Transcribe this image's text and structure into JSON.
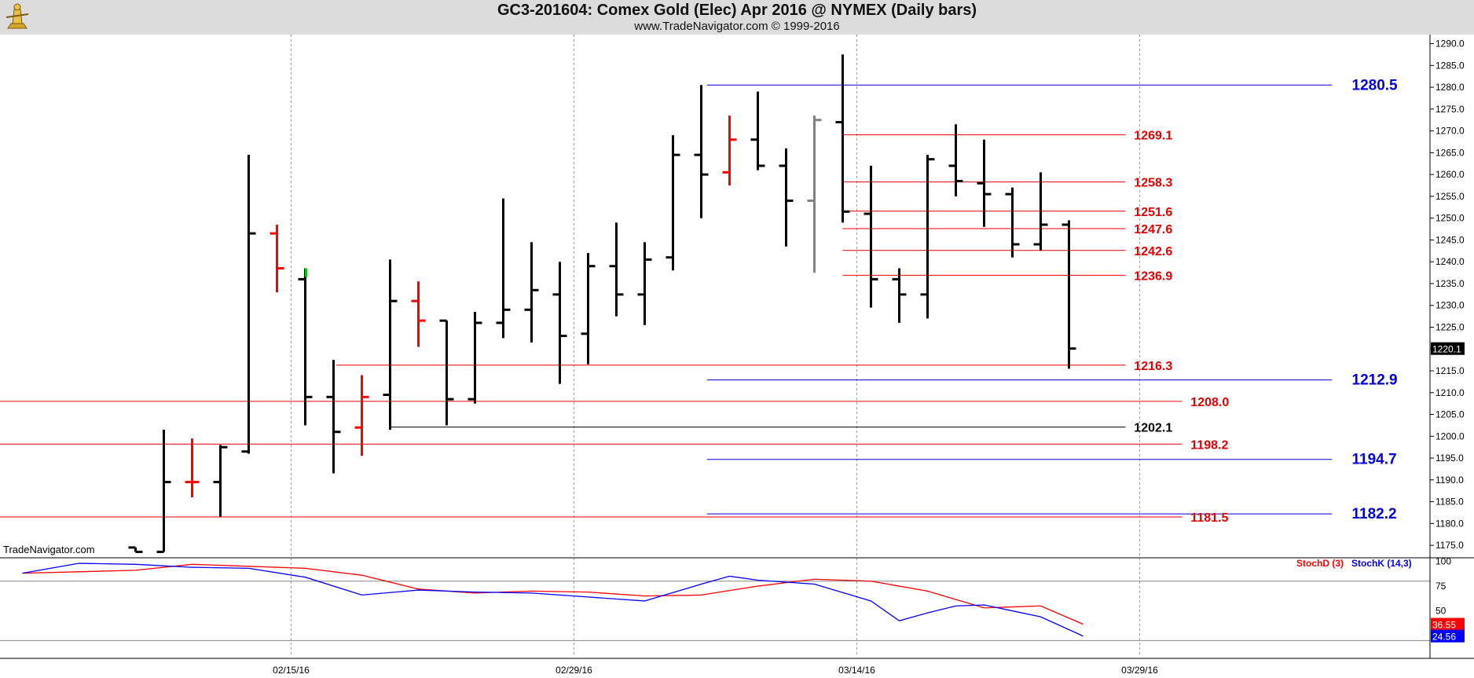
{
  "header": {
    "title": "GC3-201604:  Comex Gold (Elec) Apr 2016 @ NYMEX  (Daily bars)",
    "subtitle": "www.TradeNavigator.com © 1999-2016",
    "watermark": "TradeNavigator.com"
  },
  "colors": {
    "up_bar": "#000000",
    "down_bar": "#ff0000",
    "neutral_bar": "#808080",
    "green_tick": "#00cc00",
    "red_level": "#e60000",
    "blue_level": "#0000dd",
    "black_level": "#000000",
    "stochd": "#ff0000",
    "stochk": "#0000ff"
  },
  "chart_data": [
    {
      "type": "ohlc",
      "symbol": "GC3-201604",
      "ylim": [
        1172.5,
        1291
      ],
      "y_ticks": [
        1175,
        1180,
        1185,
        1190,
        1195,
        1200,
        1205,
        1210,
        1215,
        1220,
        1225,
        1230,
        1235,
        1240,
        1245,
        1250,
        1255,
        1260,
        1265,
        1270,
        1275,
        1280,
        1285,
        1290
      ],
      "y_tick_labels": [
        "1175.0",
        "1180.0",
        "1185.0",
        "1190.0",
        "1195.0",
        "1200.0",
        "1205.0",
        "1210.0",
        "1215.0",
        "1220.0",
        "1225.0",
        "1230.0",
        "1235.0",
        "1240.0",
        "1245.0",
        "1250.0",
        "1255.0",
        "1260.0",
        "1265.0",
        "1270.0",
        "1275.0",
        "1280.0",
        "1285.0",
        "1290.0"
      ],
      "x_tick_labels": [
        {
          "label": "02/15/16",
          "bar": 5.5
        },
        {
          "label": "02/29/16",
          "bar": 15.5
        },
        {
          "label": "03/14/16",
          "bar": 25.5
        },
        {
          "label": "03/29/16",
          "bar": 35.5
        }
      ],
      "last_price_label": "1220.1",
      "last_price": 1220.1,
      "bars": [
        {
          "o": 1174.5,
          "h": 1174.5,
          "l": 1173.5,
          "c": 1173.5,
          "color": "up"
        },
        {
          "o": 1173.5,
          "h": 1201.5,
          "l": 1173.5,
          "c": 1189.5,
          "color": "up"
        },
        {
          "o": 1189.5,
          "h": 1199.5,
          "l": 1186.0,
          "c": 1189.5,
          "color": "down"
        },
        {
          "o": 1189.5,
          "h": 1198.0,
          "l": 1181.5,
          "c": 1197.5,
          "color": "up"
        },
        {
          "o": 1196.5,
          "h": 1264.5,
          "l": 1196.0,
          "c": 1246.5,
          "color": "up"
        },
        {
          "o": 1246.5,
          "h": 1248.5,
          "l": 1233.0,
          "c": 1238.5,
          "color": "down"
        },
        {
          "o": 1236.0,
          "h": 1238.5,
          "l": 1202.5,
          "c": 1209.0,
          "color": "up"
        },
        {
          "o": 1209.0,
          "h": 1217.5,
          "l": 1191.5,
          "c": 1201.0,
          "color": "up"
        },
        {
          "o": 1202.0,
          "h": 1214.0,
          "l": 1195.5,
          "c": 1209.0,
          "color": "down"
        },
        {
          "o": 1209.5,
          "h": 1240.5,
          "l": 1201.5,
          "c": 1231.0,
          "color": "up"
        },
        {
          "o": 1231.0,
          "h": 1235.5,
          "l": 1220.5,
          "c": 1226.5,
          "color": "down"
        },
        {
          "o": 1226.5,
          "h": 1226.5,
          "l": 1202.5,
          "c": 1208.5,
          "color": "up"
        },
        {
          "o": 1208.5,
          "h": 1228.5,
          "l": 1207.5,
          "c": 1226.0,
          "color": "up"
        },
        {
          "o": 1226.0,
          "h": 1254.5,
          "l": 1222.5,
          "c": 1229.0,
          "color": "up"
        },
        {
          "o": 1229.0,
          "h": 1244.5,
          "l": 1221.5,
          "c": 1233.5,
          "color": "up"
        },
        {
          "o": 1232.5,
          "h": 1240.0,
          "l": 1212.0,
          "c": 1223.0,
          "color": "up"
        },
        {
          "o": 1223.5,
          "h": 1242.0,
          "l": 1216.5,
          "c": 1239.0,
          "color": "up"
        },
        {
          "o": 1239.0,
          "h": 1249.0,
          "l": 1227.5,
          "c": 1232.5,
          "color": "up"
        },
        {
          "o": 1232.5,
          "h": 1244.5,
          "l": 1225.5,
          "c": 1240.5,
          "color": "up"
        },
        {
          "o": 1241.0,
          "h": 1269.0,
          "l": 1238.0,
          "c": 1264.5,
          "color": "up"
        },
        {
          "o": 1264.5,
          "h": 1280.5,
          "l": 1250.0,
          "c": 1260.0,
          "color": "up"
        },
        {
          "o": 1260.5,
          "h": 1273.5,
          "l": 1257.5,
          "c": 1268.0,
          "color": "down"
        },
        {
          "o": 1268.0,
          "h": 1279.0,
          "l": 1261.0,
          "c": 1262.0,
          "color": "up"
        },
        {
          "o": 1262.0,
          "h": 1266.0,
          "l": 1243.5,
          "c": 1254.0,
          "color": "up"
        },
        {
          "o": 1254.0,
          "h": 1273.5,
          "l": 1237.5,
          "c": 1272.5,
          "color": "neutral"
        },
        {
          "o": 1272.0,
          "h": 1287.5,
          "l": 1249.0,
          "c": 1251.5,
          "color": "up"
        },
        {
          "o": 1251.0,
          "h": 1262.0,
          "l": 1229.5,
          "c": 1236.0,
          "color": "up"
        },
        {
          "o": 1236.0,
          "h": 1238.5,
          "l": 1226.0,
          "c": 1232.5,
          "color": "up"
        },
        {
          "o": 1232.5,
          "h": 1264.5,
          "l": 1227.0,
          "c": 1263.5,
          "color": "up"
        },
        {
          "o": 1262.0,
          "h": 1271.5,
          "l": 1255.0,
          "c": 1258.5,
          "color": "up"
        },
        {
          "o": 1258.0,
          "h": 1268.0,
          "l": 1248.0,
          "c": 1255.5,
          "color": "up"
        },
        {
          "o": 1255.5,
          "h": 1257.0,
          "l": 1241.0,
          "c": 1244.0,
          "color": "up"
        },
        {
          "o": 1244.0,
          "h": 1260.5,
          "l": 1242.5,
          "c": 1248.5,
          "color": "up"
        },
        {
          "o": 1248.5,
          "h": 1249.5,
          "l": 1215.5,
          "c": 1220.1,
          "color": "up"
        }
      ],
      "levels": [
        {
          "value": 1280.5,
          "label": "1280.5",
          "color": "blue",
          "from_bar": 20.2,
          "to_bar": 42.3,
          "label_bar": 43.0
        },
        {
          "value": 1269.1,
          "label": "1269.1",
          "color": "red",
          "from_bar": 25.0,
          "to_bar": 35.0,
          "label_bar": 35.3
        },
        {
          "value": 1258.3,
          "label": "1258.3",
          "color": "red",
          "from_bar": 25.0,
          "to_bar": 35.0,
          "label_bar": 35.3
        },
        {
          "value": 1251.6,
          "label": "1251.6",
          "color": "red",
          "from_bar": 25.0,
          "to_bar": 35.0,
          "label_bar": 35.3
        },
        {
          "value": 1247.6,
          "label": "1247.6",
          "color": "red",
          "from_bar": 25.0,
          "to_bar": 35.0,
          "label_bar": 35.3
        },
        {
          "value": 1242.6,
          "label": "1242.6",
          "color": "red",
          "from_bar": 25.0,
          "to_bar": 35.0,
          "label_bar": 35.3
        },
        {
          "value": 1236.9,
          "label": "1236.9",
          "color": "red",
          "from_bar": 25.0,
          "to_bar": 35.0,
          "label_bar": 35.3
        },
        {
          "value": 1216.3,
          "label": "1216.3",
          "color": "red",
          "from_bar": 7.1,
          "to_bar": 35.0,
          "label_bar": 35.3
        },
        {
          "value": 1212.9,
          "label": "1212.9",
          "color": "blue",
          "from_bar": 20.2,
          "to_bar": 42.3,
          "label_bar": 43.0
        },
        {
          "value": 1208.0,
          "label": "1208.0",
          "color": "red",
          "from_bar": -5.8,
          "to_bar": 37.0,
          "label_bar": 37.3
        },
        {
          "value": 1202.1,
          "label": "1202.1",
          "color": "black",
          "from_bar": 9.0,
          "to_bar": 35.0,
          "label_bar": 35.3
        },
        {
          "value": 1198.2,
          "label": "1198.2",
          "color": "red",
          "from_bar": -5.8,
          "to_bar": 37.0,
          "label_bar": 37.3
        },
        {
          "value": 1194.7,
          "label": "1194.7",
          "color": "blue",
          "from_bar": 20.2,
          "to_bar": 42.3,
          "label_bar": 43.0
        },
        {
          "value": 1182.2,
          "label": "1182.2",
          "color": "blue",
          "from_bar": 20.2,
          "to_bar": 42.3,
          "label_bar": 43.0
        },
        {
          "value": 1181.5,
          "label": "1181.5",
          "color": "red",
          "from_bar": -5.8,
          "to_bar": 37.0,
          "label_bar": 37.3
        }
      ]
    },
    {
      "type": "line",
      "panel": "stochastic",
      "ylim": [
        10,
        102
      ],
      "y_ticks": [
        100,
        75,
        50
      ],
      "y_tick_labels": [
        "100",
        "75",
        "50"
      ],
      "reference_lines": [
        80,
        20
      ],
      "series": [
        {
          "name": "StochD (3)",
          "color": "#ff0000",
          "last_label": "36.55",
          "x": [
            -4,
            0,
            2,
            4,
            6,
            8,
            10,
            12,
            14,
            16,
            18,
            20,
            22,
            24,
            26,
            28,
            30,
            32,
            33.5
          ],
          "values": [
            88,
            91,
            97,
            95,
            93,
            86,
            72,
            68,
            70,
            69,
            65,
            66,
            75,
            82,
            80,
            70,
            53,
            55,
            36.55
          ]
        },
        {
          "name": "StochK (14,3)",
          "color": "#0000ff",
          "last_label": "24.56",
          "x": [
            -4,
            -2,
            0,
            2,
            4,
            6,
            8,
            10,
            12,
            14,
            16,
            18,
            20,
            21,
            22,
            24,
            26,
            27,
            28,
            29,
            30,
            31,
            32,
            33.5
          ],
          "values": [
            88,
            98,
            97,
            94,
            93,
            84,
            66,
            71,
            69,
            68,
            64,
            60,
            77,
            85,
            81,
            77,
            60,
            40,
            48,
            55,
            56,
            50,
            44,
            24.56
          ]
        }
      ]
    }
  ]
}
